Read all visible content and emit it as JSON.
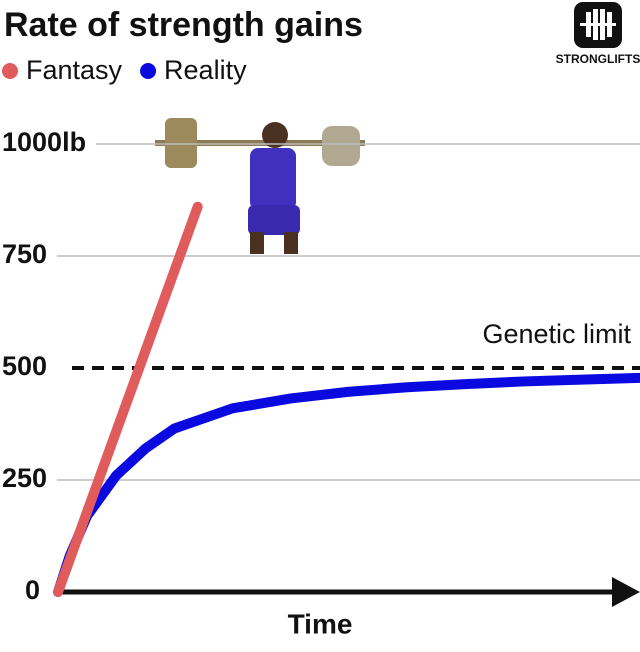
{
  "chart_data": {
    "type": "line",
    "title": "Rate of strength gains",
    "x_label": "Time",
    "logo": "STRONGLIFTS",
    "xlim": [
      0,
      100
    ],
    "ylim": [
      0,
      1000
    ],
    "yticks": [
      0,
      250,
      500,
      750,
      {
        "value": 1000,
        "label": "1000lb"
      }
    ],
    "grid": true,
    "limit": {
      "value": 500,
      "label": "Genetic limit"
    },
    "series": [
      {
        "name": "Fantasy",
        "color": "#e05b5b",
        "x": [
          0,
          24
        ],
        "values": [
          0,
          860
        ]
      },
      {
        "name": "Reality",
        "color": "#0a0ae0",
        "x": [
          0,
          2,
          5,
          10,
          15,
          20,
          30,
          40,
          50,
          60,
          70,
          80,
          90,
          100
        ],
        "values": [
          0,
          80,
          170,
          260,
          320,
          365,
          410,
          432,
          447,
          457,
          464,
          470,
          474,
          478
        ]
      }
    ]
  }
}
